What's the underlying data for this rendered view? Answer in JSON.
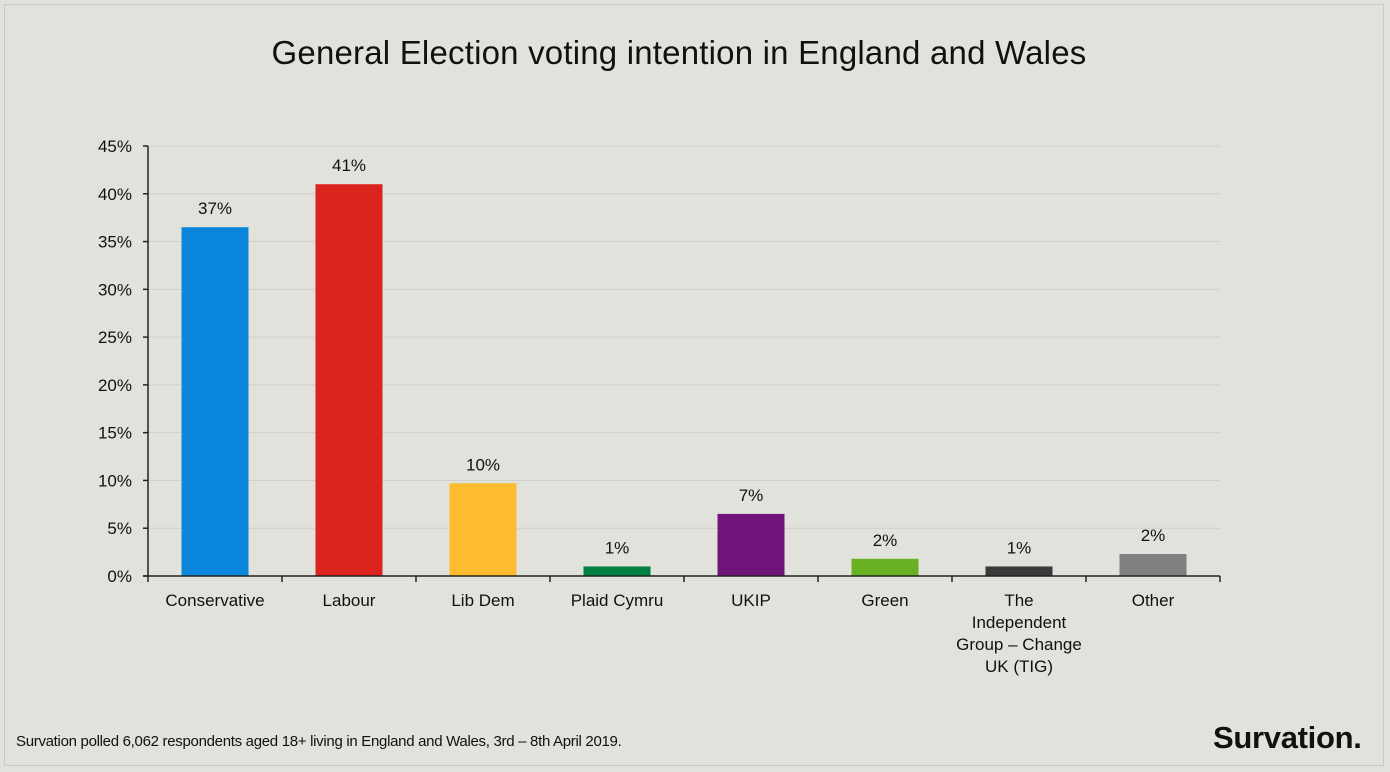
{
  "chart_data": {
    "type": "bar",
    "title": "General Election voting intention in England and Wales",
    "categories": [
      "Conservative",
      "Labour",
      "Lib Dem",
      "Plaid Cymru",
      "UKIP",
      "Green",
      "The Independent Group – Change UK (TIG)",
      "Other"
    ],
    "category_lines": [
      [
        "Conservative"
      ],
      [
        "Labour"
      ],
      [
        "Lib Dem"
      ],
      [
        "Plaid Cymru"
      ],
      [
        "UKIP"
      ],
      [
        "Green"
      ],
      [
        "The",
        "Independent",
        "Group – Change",
        "UK (TIG)"
      ],
      [
        "Other"
      ]
    ],
    "values": [
      36.5,
      41,
      9.7,
      1,
      6.5,
      1.8,
      1,
      2.3
    ],
    "data_labels": [
      "37%",
      "41%",
      "10%",
      "1%",
      "7%",
      "2%",
      "1%",
      "2%"
    ],
    "colors": [
      "#0a87dc",
      "#dc241f",
      "#fdbb30",
      "#008142",
      "#70147a",
      "#6ab023",
      "#3a3a3a",
      "#808080"
    ],
    "ylim": [
      0,
      45
    ],
    "yticks": [
      "0%",
      "5%",
      "10%",
      "15%",
      "20%",
      "25%",
      "30%",
      "35%",
      "40%",
      "45%"
    ],
    "grid": true,
    "legend": "none"
  },
  "footer": {
    "note": "Survation polled 6,062 respondents aged 18+ living in England and Wales, 3rd – 8th April 2019.",
    "brand": "Survation."
  }
}
